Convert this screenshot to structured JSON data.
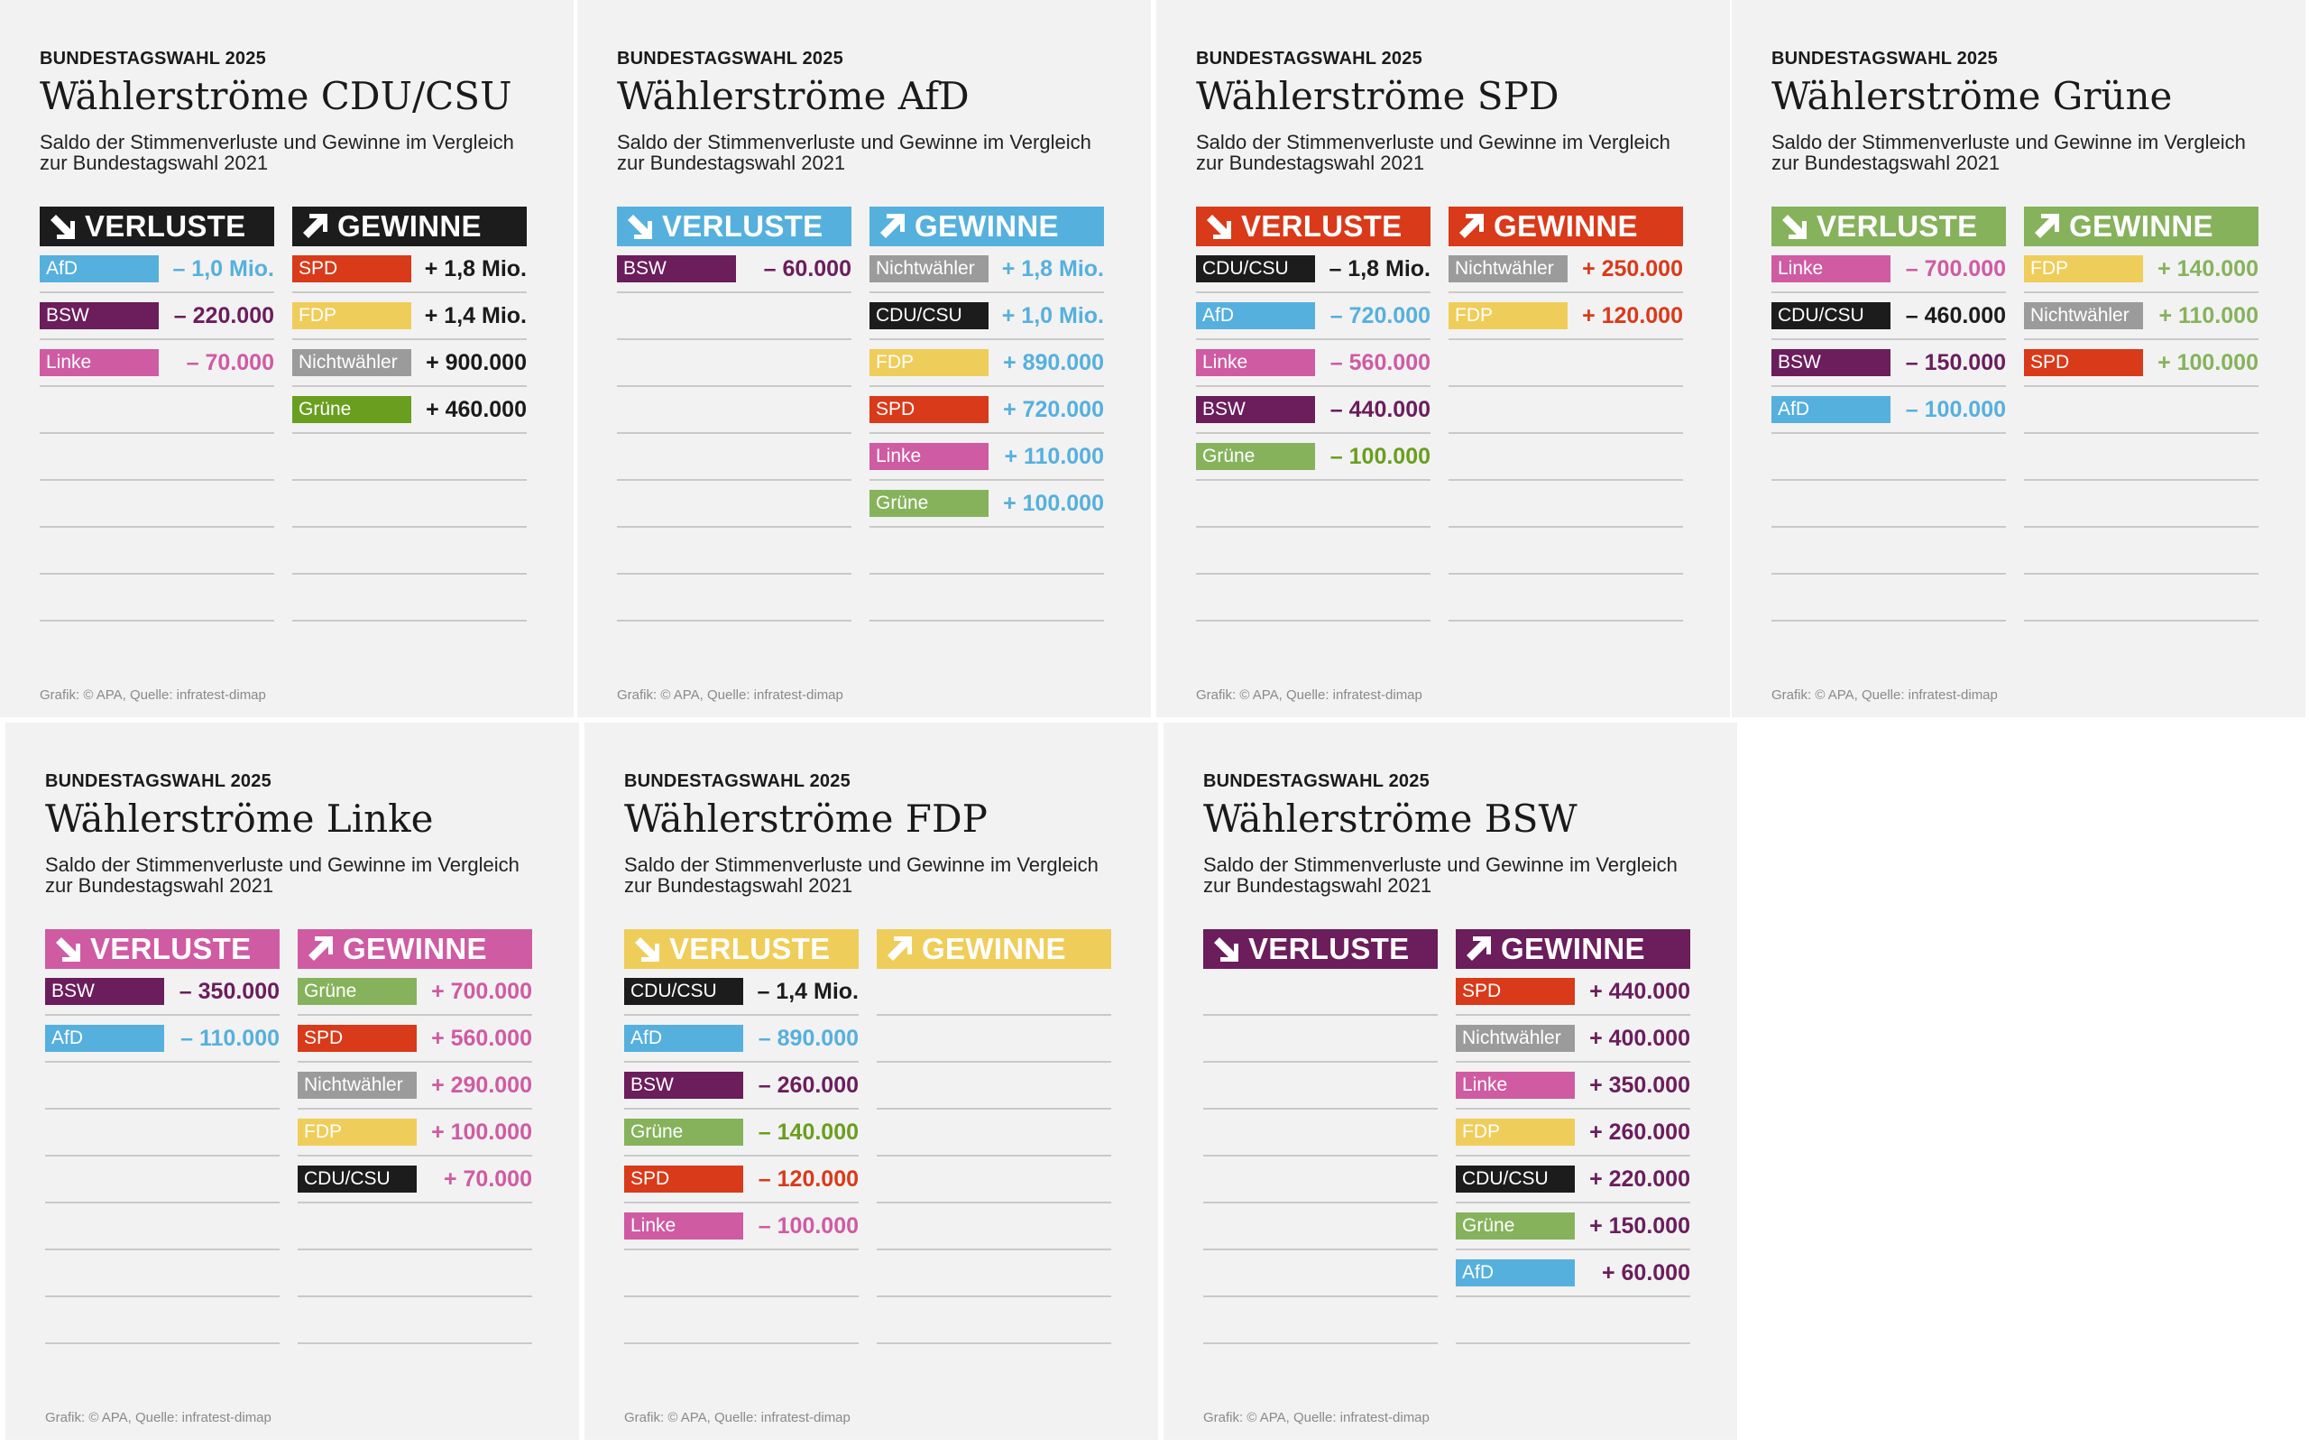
{
  "colors": {
    "CDU/CSU": "#1c1c1c",
    "AfD": "#56b0dd",
    "SPD": "#d93a1a",
    "Grüne": "#86b25c",
    "Grüne_dark": "#6a9e1e",
    "Linke": "#cf5ba3",
    "FDP": "#efcd5a",
    "BSW": "#6b1d5c",
    "Nichtwähler": "#9b9b9b"
  },
  "labels": {
    "eyebrow": "BUNDESTAGSWAHL 2025",
    "subtitle": "Saldo der Stimmenverluste und Gewinne im Vergleich zur Bundestagswahl 2021",
    "losses": "VERLUSTE",
    "gains": "GEWINNE",
    "credit": "Grafik: © APA, Quelle: infratest-dimap"
  },
  "chart_data": [
    {
      "type": "table",
      "party": "CDU/CSU",
      "title": "Wählerströme CDU/CSU",
      "losses": [
        {
          "party": "AfD",
          "label": "AfD",
          "value": "– 1,0 Mio."
        },
        {
          "party": "BSW",
          "label": "BSW",
          "value": "– 220.000"
        },
        {
          "party": "Linke",
          "label": "Linke",
          "value": "– 70.000"
        }
      ],
      "gains": [
        {
          "party": "SPD",
          "label": "SPD",
          "value": "+ 1,8 Mio."
        },
        {
          "party": "FDP",
          "label": "FDP",
          "value": "+ 1,4 Mio."
        },
        {
          "party": "Nichtwähler",
          "label": "Nichtwähler",
          "value": "+ 900.000"
        },
        {
          "party": "Grüne_dark",
          "label": "Grüne",
          "value": "+ 460.000"
        }
      ]
    },
    {
      "type": "table",
      "party": "AfD",
      "title": "Wählerströme AfD",
      "losses": [
        {
          "party": "BSW",
          "label": "BSW",
          "value": "– 60.000"
        }
      ],
      "gains": [
        {
          "party": "Nichtwähler",
          "label": "Nichtwähler",
          "value": "+ 1,8 Mio."
        },
        {
          "party": "CDU/CSU",
          "label": "CDU/CSU",
          "value": "+ 1,0 Mio."
        },
        {
          "party": "FDP",
          "label": "FDP",
          "value": "+ 890.000"
        },
        {
          "party": "SPD",
          "label": "SPD",
          "value": "+ 720.000"
        },
        {
          "party": "Linke",
          "label": "Linke",
          "value": "+ 110.000"
        },
        {
          "party": "Grüne",
          "label": "Grüne",
          "value": "+ 100.000"
        }
      ]
    },
    {
      "type": "table",
      "party": "SPD",
      "title": "Wählerströme SPD",
      "losses": [
        {
          "party": "CDU/CSU",
          "label": "CDU/CSU",
          "value": "– 1,8 Mio."
        },
        {
          "party": "AfD",
          "label": "AfD",
          "value": "– 720.000"
        },
        {
          "party": "Linke",
          "label": "Linke",
          "value": "– 560.000"
        },
        {
          "party": "BSW",
          "label": "BSW",
          "value": "– 440.000"
        },
        {
          "party": "Grüne",
          "label": "Grüne",
          "value": "– 100.000",
          "value_party": "Grüne_dark"
        }
      ],
      "gains": [
        {
          "party": "Nichtwähler",
          "label": "Nichtwähler",
          "value": "+ 250.000"
        },
        {
          "party": "FDP",
          "label": "FDP",
          "value": "+ 120.000"
        }
      ]
    },
    {
      "type": "table",
      "party": "Grüne",
      "title": "Wählerströme Grüne",
      "losses": [
        {
          "party": "Linke",
          "label": "Linke",
          "value": "– 700.000"
        },
        {
          "party": "CDU/CSU",
          "label": "CDU/CSU",
          "value": "– 460.000"
        },
        {
          "party": "BSW",
          "label": "BSW",
          "value": "– 150.000"
        },
        {
          "party": "AfD",
          "label": "AfD",
          "value": "– 100.000"
        }
      ],
      "gains": [
        {
          "party": "FDP",
          "label": "FDP",
          "value": "+ 140.000"
        },
        {
          "party": "Nichtwähler",
          "label": "Nichtwähler",
          "value": "+ 110.000"
        },
        {
          "party": "SPD",
          "label": "SPD",
          "value": "+ 100.000"
        }
      ]
    },
    {
      "type": "table",
      "party": "Linke",
      "title": "Wählerströme Linke",
      "losses": [
        {
          "party": "BSW",
          "label": "BSW",
          "value": "– 350.000"
        },
        {
          "party": "AfD",
          "label": "AfD",
          "value": "– 110.000"
        }
      ],
      "gains": [
        {
          "party": "Grüne",
          "label": "Grüne",
          "value": "+ 700.000"
        },
        {
          "party": "SPD",
          "label": "SPD",
          "value": "+ 560.000"
        },
        {
          "party": "Nichtwähler",
          "label": "Nichtwähler",
          "value": "+ 290.000"
        },
        {
          "party": "FDP",
          "label": "FDP",
          "value": "+ 100.000"
        },
        {
          "party": "CDU/CSU",
          "label": "CDU/CSU",
          "value": "+ 70.000"
        }
      ]
    },
    {
      "type": "table",
      "party": "FDP",
      "title": "Wählerströme FDP",
      "losses": [
        {
          "party": "CDU/CSU",
          "label": "CDU/CSU",
          "value": "– 1,4 Mio."
        },
        {
          "party": "AfD",
          "label": "AfD",
          "value": "– 890.000"
        },
        {
          "party": "BSW",
          "label": "BSW",
          "value": "– 260.000"
        },
        {
          "party": "Grüne",
          "label": "Grüne",
          "value": "– 140.000",
          "value_party": "Grüne_dark"
        },
        {
          "party": "SPD",
          "label": "SPD",
          "value": "– 120.000"
        },
        {
          "party": "Linke",
          "label": "Linke",
          "value": "– 100.000"
        }
      ],
      "gains": []
    },
    {
      "type": "table",
      "party": "BSW",
      "title": "Wählerströme BSW",
      "losses": [],
      "gains": [
        {
          "party": "SPD",
          "label": "SPD",
          "value": "+ 440.000"
        },
        {
          "party": "Nichtwähler",
          "label": "Nichtwähler",
          "value": "+ 400.000"
        },
        {
          "party": "Linke",
          "label": "Linke",
          "value": "+ 350.000"
        },
        {
          "party": "FDP",
          "label": "FDP",
          "value": "+ 260.000"
        },
        {
          "party": "CDU/CSU",
          "label": "CDU/CSU",
          "value": "+ 220.000"
        },
        {
          "party": "Grüne",
          "label": "Grüne",
          "value": "+ 150.000"
        },
        {
          "party": "AfD",
          "label": "AfD",
          "value": "+ 60.000"
        }
      ]
    }
  ]
}
